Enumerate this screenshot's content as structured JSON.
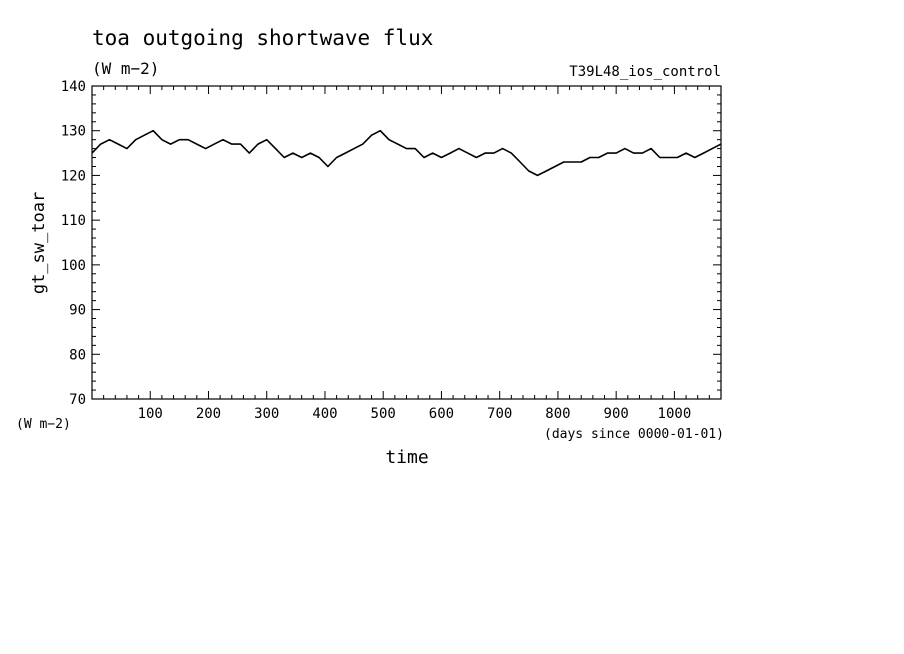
{
  "chart_data": {
    "type": "line",
    "title": "toa outgoing shortwave flux",
    "subtitle": "(W m−2)",
    "run_label": "T39L48_ios_control",
    "xlabel": "time",
    "x_units": "(days since 0000-01-01)",
    "ylabel": "gt_sw_toar",
    "y_units": "(W m−2)",
    "xlim": [
      0,
      1080
    ],
    "ylim": [
      70,
      140
    ],
    "x_ticks": [
      100,
      200,
      300,
      400,
      500,
      600,
      700,
      800,
      900,
      1000
    ],
    "y_ticks": [
      70,
      80,
      90,
      100,
      110,
      120,
      130,
      140
    ],
    "grid": false,
    "line_color": "#000000",
    "series": [
      {
        "x": [
          0,
          15,
          30,
          45,
          60,
          75,
          90,
          105,
          120,
          135,
          150,
          165,
          180,
          195,
          210,
          225,
          240,
          255,
          270,
          285,
          300,
          315,
          330,
          345,
          360,
          375,
          390,
          405,
          420,
          435,
          450,
          465,
          480,
          495,
          510,
          525,
          540,
          555,
          570,
          585,
          600,
          615,
          630,
          645,
          660,
          675,
          690,
          705,
          720,
          735,
          750,
          765,
          780,
          795,
          810,
          825,
          840,
          855,
          870,
          885,
          900,
          915,
          930,
          945,
          960,
          975,
          990,
          1005,
          1020,
          1035,
          1050,
          1065,
          1080
        ],
        "values": [
          125,
          127,
          128,
          127,
          126,
          128,
          129,
          130,
          128,
          127,
          128,
          128,
          127,
          126,
          127,
          128,
          127,
          127,
          125,
          127,
          128,
          126,
          124,
          125,
          124,
          125,
          124,
          122,
          124,
          125,
          126,
          127,
          129,
          130,
          128,
          127,
          126,
          126,
          124,
          125,
          124,
          125,
          126,
          125,
          124,
          125,
          125,
          126,
          125,
          123,
          121,
          120,
          121,
          122,
          123,
          123,
          123,
          124,
          124,
          125,
          125,
          126,
          125,
          125,
          126,
          124,
          124,
          124,
          125,
          124,
          125,
          126,
          127
        ]
      }
    ]
  }
}
